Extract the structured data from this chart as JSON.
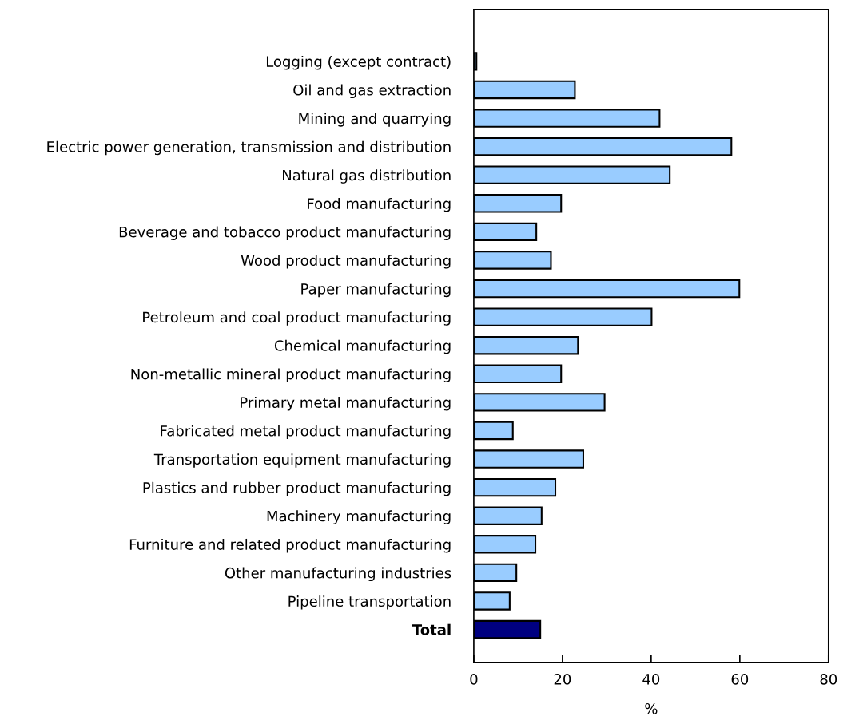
{
  "chart_data": {
    "type": "bar",
    "orientation": "horizontal",
    "xlabel": "%",
    "categories": [
      "Logging (except contract)",
      "Oil and gas extraction",
      "Mining and quarrying",
      "Electric power generation, transmission and distribution",
      "Natural gas distribution",
      "Food manufacturing",
      "Beverage and tobacco product manufacturing",
      "Wood product manufacturing",
      "Paper manufacturing",
      "Petroleum and coal product manufacturing",
      "Chemical manufacturing",
      "Non-metallic mineral product manufacturing",
      "Primary metal manufacturing",
      "Fabricated metal product manufacturing",
      "Transportation equipment manufacturing",
      "Plastics and rubber product manufacturing",
      "Machinery manufacturing",
      "Furniture and related product manufacturing",
      "Other manufacturing industries",
      "Pipeline transportation",
      "Total"
    ],
    "values": [
      0.6,
      22.8,
      41.9,
      58.1,
      44.2,
      19.7,
      14.1,
      17.4,
      59.9,
      40.1,
      23.5,
      19.7,
      29.5,
      8.8,
      24.7,
      18.4,
      15.3,
      13.9,
      9.6,
      8.1,
      15.0
    ],
    "colors": [
      "#99ccff",
      "#99ccff",
      "#99ccff",
      "#99ccff",
      "#99ccff",
      "#99ccff",
      "#99ccff",
      "#99ccff",
      "#99ccff",
      "#99ccff",
      "#99ccff",
      "#99ccff",
      "#99ccff",
      "#99ccff",
      "#99ccff",
      "#99ccff",
      "#99ccff",
      "#99ccff",
      "#99ccff",
      "#99ccff",
      "#000080"
    ],
    "xlim": [
      0,
      80
    ],
    "xticks": [
      0,
      20,
      40,
      60,
      80
    ],
    "grid": false,
    "legend": false
  }
}
